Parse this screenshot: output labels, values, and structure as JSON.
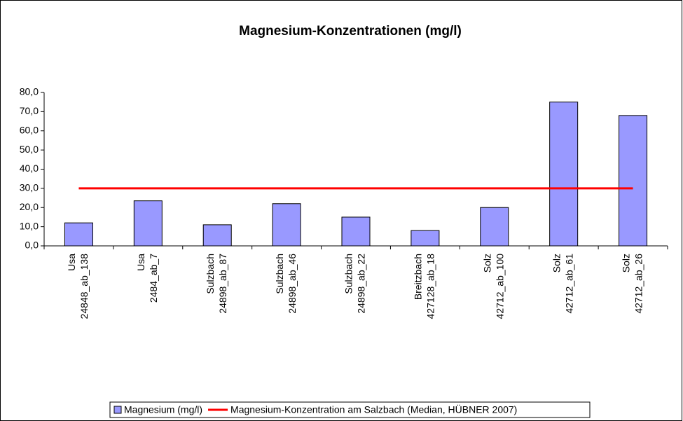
{
  "chart_data": {
    "type": "bar",
    "title": "Magnesium-Konzentrationen (mg/l)",
    "categories": [
      [
        "Usa",
        "24848_ab_138"
      ],
      [
        "Usa",
        "2484_ab_7"
      ],
      [
        "Sulzbach",
        "24898_ab_87"
      ],
      [
        "Sulzbach",
        "24898_ab_46"
      ],
      [
        "Sulzbach",
        "24898_ab_22"
      ],
      [
        "Breitzbach",
        "427128_ab_18"
      ],
      [
        "Solz",
        "42712_ab_100"
      ],
      [
        "Solz",
        "42712_ab_61"
      ],
      [
        "Solz",
        "42712_ab_26"
      ]
    ],
    "series": [
      {
        "name": "Magnesium (mg/l)",
        "color": "#9999ff",
        "values": [
          12,
          23.5,
          11,
          22,
          15,
          8,
          20,
          75,
          68
        ]
      },
      {
        "name": "Magnesium-Konzentration am Salzbach (Median, HÜBNER 2007)",
        "type": "line",
        "color": "#ff0000",
        "values": [
          30,
          30,
          30,
          30,
          30,
          30,
          30,
          30,
          30
        ]
      }
    ],
    "ylim": [
      0,
      80
    ],
    "yticks": [
      {
        "value": 0,
        "label": "0,0"
      },
      {
        "value": 10,
        "label": "10,0"
      },
      {
        "value": 20,
        "label": "20,0"
      },
      {
        "value": 30,
        "label": "30,0"
      },
      {
        "value": 40,
        "label": "40,0"
      },
      {
        "value": 50,
        "label": "50,0"
      },
      {
        "value": 60,
        "label": "60,0"
      },
      {
        "value": 70,
        "label": "70,0"
      },
      {
        "value": 80,
        "label": "80,0"
      }
    ],
    "grid": false,
    "legend": "bottom"
  }
}
